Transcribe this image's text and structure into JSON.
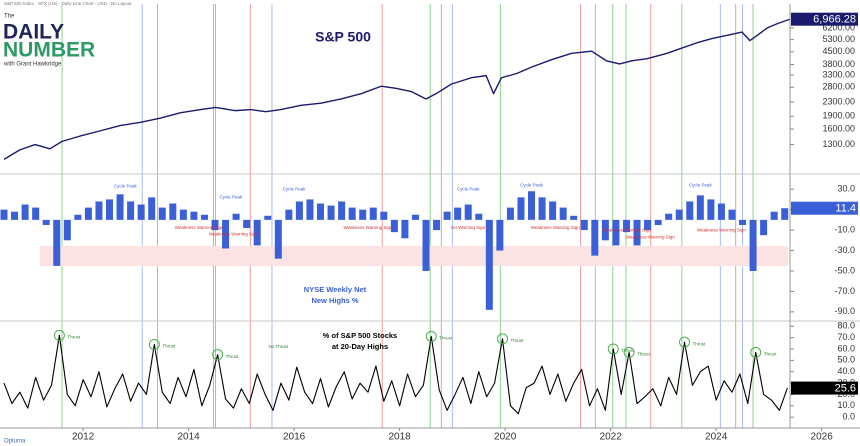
{
  "header": {
    "source": "S&P 500 Index - SPX (US) - Daily Line Chart - USD - No Layout",
    "logo": [
      "The",
      "DAILY",
      "NUMBER",
      "with Grant Hawkridge"
    ]
  },
  "footer": "Optuma",
  "chart_data": [
    {
      "type": "line",
      "title": [
        "S&P 500"
      ],
      "color": "#1a1a6e",
      "log_scale": true,
      "x": [
        2010.5,
        2010.8,
        2011.09,
        2011.37,
        2011.6,
        2011.94,
        2012.33,
        2012.71,
        2013.09,
        2013.47,
        2013.85,
        2014.23,
        2014.51,
        2014.89,
        2015.18,
        2015.46,
        2015.75,
        2016.13,
        2016.51,
        2016.89,
        2017.27,
        2017.65,
        2017.93,
        2018.22,
        2018.5,
        2018.69,
        2018.98,
        2019.36,
        2019.64,
        2019.78,
        2019.93,
        2020.22,
        2020.5,
        2020.88,
        2021.26,
        2021.64,
        2021.92,
        2022.17,
        2022.4,
        2022.69,
        2023.07,
        2023.35,
        2023.64,
        2023.92,
        2024.21,
        2024.49,
        2024.64,
        2024.78,
        2024.97,
        2025.16,
        2025.39
      ],
      "values": [
        1066,
        1211,
        1300,
        1228,
        1357,
        1456,
        1564,
        1679,
        1752,
        1854,
        1991,
        2077,
        2137,
        2048,
        2077,
        2019,
        2077,
        2199,
        2262,
        2394,
        2570,
        2839,
        2760,
        2644,
        2394,
        2570,
        2921,
        3181,
        3272,
        2570,
        3181,
        3367,
        3667,
        4050,
        4411,
        4537,
        3992,
        3826,
        3992,
        4108,
        4411,
        4735,
        5083,
        5378,
        5615,
        5861,
        5230,
        5615,
        6201,
        6565,
        6947
      ],
      "xlim": [
        2010.5,
        2025.4
      ],
      "ylim": [
        950,
        7670
      ],
      "yticks": [
        {
          "value": 1300,
          "label": "1300.00"
        },
        {
          "value": 1600,
          "label": "1600.00"
        },
        {
          "value": 1900,
          "label": "1900.00"
        },
        {
          "value": 2300,
          "label": "2300.00"
        },
        {
          "value": 2800,
          "label": "2800.00"
        },
        {
          "value": 3300,
          "label": "3300.00"
        },
        {
          "value": 3800,
          "label": "3800.00"
        },
        {
          "value": 4500,
          "label": "4500.00"
        },
        {
          "value": 5300,
          "label": "5300.00"
        },
        {
          "value": 6200,
          "label": "6200.00"
        }
      ],
      "current": {
        "value": 6966.28,
        "label": "6,966.28"
      },
      "event_lines": [
        {
          "color": "#8fd18f",
          "x": [
            2011.6,
            2013.41,
            2014.51,
            2018.58,
            2019.91,
            2022.04,
            2022.29,
            2023.35,
            2024.7
          ]
        },
        {
          "color": "#f19a9a",
          "x": [
            2014.47,
            2015.17,
            2017.67,
            2018.79,
            2021.43,
            2022.76,
            2024.37
          ]
        },
        {
          "color": "#a9bdf2",
          "x": [
            2013.12,
            2015.58,
            2019.0,
            2021.71,
            2024.08,
            2024.5
          ]
        }
      ]
    },
    {
      "type": "bar",
      "title": [
        "NYSE Weekly Net",
        "New Highs %"
      ],
      "color": "#3a5fd6",
      "x": [
        2010.5,
        2010.7,
        2010.9,
        2011.1,
        2011.3,
        2011.5,
        2011.7,
        2011.9,
        2012.1,
        2012.3,
        2012.5,
        2012.7,
        2012.9,
        2013.1,
        2013.3,
        2013.5,
        2013.7,
        2013.9,
        2014.1,
        2014.3,
        2014.5,
        2014.7,
        2014.9,
        2015.1,
        2015.3,
        2015.5,
        2015.7,
        2015.9,
        2016.1,
        2016.3,
        2016.5,
        2016.7,
        2016.9,
        2017.1,
        2017.3,
        2017.5,
        2017.7,
        2017.9,
        2018.1,
        2018.3,
        2018.5,
        2018.7,
        2018.9,
        2019.1,
        2019.3,
        2019.5,
        2019.7,
        2019.9,
        2020.1,
        2020.3,
        2020.5,
        2020.7,
        2020.9,
        2021.1,
        2021.3,
        2021.5,
        2021.7,
        2021.9,
        2022.1,
        2022.3,
        2022.5,
        2022.7,
        2022.9,
        2023.1,
        2023.3,
        2023.5,
        2023.7,
        2023.9,
        2024.1,
        2024.3,
        2024.5,
        2024.7,
        2024.9,
        2025.1,
        2025.3
      ],
      "values": [
        10,
        8,
        15,
        12,
        -5,
        -45,
        -20,
        5,
        12,
        18,
        20,
        25,
        18,
        15,
        22,
        12,
        16,
        10,
        8,
        5,
        -10,
        -28,
        6,
        -8,
        -25,
        4,
        -38,
        10,
        18,
        20,
        16,
        14,
        18,
        12,
        10,
        12,
        8,
        -12,
        -18,
        5,
        -50,
        -10,
        8,
        12,
        15,
        6,
        -88,
        -30,
        12,
        22,
        28,
        22,
        18,
        12,
        4,
        -10,
        -35,
        -20,
        -25,
        -12,
        -25,
        -10,
        -5,
        6,
        10,
        18,
        24,
        20,
        16,
        10,
        -5,
        -50,
        -15,
        8,
        11.4
      ],
      "xlim": [
        2010.5,
        2025.4
      ],
      "ylim": [
        -96,
        39
      ],
      "yticks": [
        {
          "value": 30,
          "label": "30.0"
        },
        {
          "value": 10,
          "label": "10.0"
        },
        {
          "value": -10,
          "label": "-10.0"
        },
        {
          "value": -30,
          "label": "-30.0"
        },
        {
          "value": -50,
          "label": "-50.0"
        },
        {
          "value": -70,
          "label": "-70.0"
        },
        {
          "value": -90,
          "label": "-90.0"
        }
      ],
      "current": 11.4,
      "annotations": [
        {
          "text": "Cycle Peak",
          "x": 2012.8,
          "y": 33
        },
        {
          "text": "Cycle Peak",
          "x": 2014.8,
          "y": 22
        },
        {
          "text": "Cycle Peak",
          "x": 2016.0,
          "y": 30
        },
        {
          "text": "Cycle Peak",
          "x": 2019.3,
          "y": 30
        },
        {
          "text": "Cycle Peak",
          "x": 2020.5,
          "y": 34
        },
        {
          "text": "Cycle Peak",
          "x": 2023.7,
          "y": 34
        },
        {
          "text": "Weakness Warning Sign",
          "x": 2014.2,
          "y": -8
        },
        {
          "text": "Weakness Warning Sign",
          "x": 2014.85,
          "y": -14
        },
        {
          "text": "Weakness Warning Sign",
          "x": 2017.4,
          "y": -8
        },
        {
          "text": "No Warning Sign",
          "x": 2019.3,
          "y": -8
        },
        {
          "text": "Weakness Warning Sign",
          "x": 2020.95,
          "y": -8
        },
        {
          "text": "Weakness Warning Sign",
          "x": 2022.3,
          "y": -10
        },
        {
          "text": "Weakness Warning Sign",
          "x": 2022.75,
          "y": -17
        },
        {
          "text": "Weakness Warning Sign",
          "x": 2024.1,
          "y": -10
        }
      ]
    },
    {
      "type": "line",
      "title": [
        "% of S&P 500 Stocks",
        "at 20-Day Highs"
      ],
      "color": "#000000",
      "x": [
        2010.5,
        2010.65,
        2010.8,
        2010.95,
        2011.1,
        2011.25,
        2011.4,
        2011.55,
        2011.7,
        2011.85,
        2012,
        2012.15,
        2012.3,
        2012.45,
        2012.6,
        2012.75,
        2012.9,
        2013.05,
        2013.2,
        2013.35,
        2013.5,
        2013.65,
        2013.8,
        2013.95,
        2014.1,
        2014.25,
        2014.4,
        2014.55,
        2014.7,
        2014.85,
        2015,
        2015.15,
        2015.3,
        2015.45,
        2015.6,
        2015.75,
        2015.9,
        2016.05,
        2016.2,
        2016.35,
        2016.5,
        2016.65,
        2016.8,
        2016.95,
        2017.1,
        2017.25,
        2017.4,
        2017.55,
        2017.7,
        2017.85,
        2018,
        2018.15,
        2018.3,
        2018.45,
        2018.6,
        2018.75,
        2018.9,
        2019.05,
        2019.2,
        2019.35,
        2019.5,
        2019.65,
        2019.8,
        2019.95,
        2020.1,
        2020.25,
        2020.4,
        2020.55,
        2020.7,
        2020.85,
        2021,
        2021.15,
        2021.3,
        2021.45,
        2021.6,
        2021.75,
        2021.9,
        2022.05,
        2022.2,
        2022.35,
        2022.5,
        2022.65,
        2022.8,
        2022.95,
        2023.1,
        2023.25,
        2023.4,
        2023.55,
        2023.7,
        2023.85,
        2024,
        2024.15,
        2024.3,
        2024.45,
        2024.6,
        2024.75,
        2024.9,
        2025.05,
        2025.2,
        2025.35
      ],
      "values": [
        30,
        12,
        22,
        8,
        35,
        15,
        28,
        72,
        20,
        10,
        33,
        18,
        40,
        9,
        25,
        38,
        14,
        30,
        20,
        64,
        22,
        12,
        35,
        18,
        42,
        10,
        28,
        55,
        16,
        8,
        25,
        12,
        38,
        20,
        6,
        30,
        15,
        44,
        22,
        12,
        34,
        9,
        27,
        40,
        16,
        30,
        22,
        45,
        14,
        32,
        10,
        38,
        18,
        28,
        71,
        24,
        6,
        20,
        35,
        12,
        40,
        18,
        30,
        69,
        10,
        3,
        26,
        30,
        45,
        20,
        38,
        14,
        30,
        42,
        10,
        25,
        6,
        60,
        20,
        57,
        12,
        18,
        25,
        10,
        35,
        20,
        66,
        28,
        40,
        45,
        15,
        32,
        22,
        38,
        12,
        57,
        20,
        15,
        6,
        25.6
      ],
      "xlim": [
        2010.5,
        2025.4
      ],
      "ylim": [
        -6,
        82
      ],
      "yticks": [
        {
          "value": 80,
          "label": "80.0"
        },
        {
          "value": 70,
          "label": "70.0"
        },
        {
          "value": 60,
          "label": "60.0"
        },
        {
          "value": 50,
          "label": "50.0"
        },
        {
          "value": 40,
          "label": "40.0"
        },
        {
          "value": 30,
          "label": "30.0"
        },
        {
          "value": 20,
          "label": "20.0"
        },
        {
          "value": 10,
          "label": "10.0"
        },
        {
          "value": 0,
          "label": "0.0"
        }
      ],
      "xticks": [
        2012,
        2014,
        2016,
        2018,
        2020,
        2022,
        2024,
        2026
      ],
      "current": 25.6,
      "annotations": [
        {
          "text": "Thrust",
          "x": 2011.55,
          "y": 72,
          "circled": true
        },
        {
          "text": "Thrust",
          "x": 2013.35,
          "y": 64,
          "circled": true
        },
        {
          "text": "Thrust",
          "x": 2014.55,
          "y": 55,
          "circled": true
        },
        {
          "text": "No Thrust",
          "x": 2015.7,
          "y": 62
        },
        {
          "text": "Thrust",
          "x": 2018.6,
          "y": 71,
          "circled": true
        },
        {
          "text": "Thrust",
          "x": 2019.95,
          "y": 69,
          "circled": true
        },
        {
          "text": "Thrust",
          "x": 2022.05,
          "y": 60,
          "circled": true
        },
        {
          "text": "Thrust",
          "x": 2022.35,
          "y": 57,
          "circled": true
        },
        {
          "text": "Thrust",
          "x": 2023.4,
          "y": 66,
          "circled": true
        },
        {
          "text": "Thrust",
          "x": 2024.75,
          "y": 57,
          "circled": true
        }
      ]
    }
  ]
}
